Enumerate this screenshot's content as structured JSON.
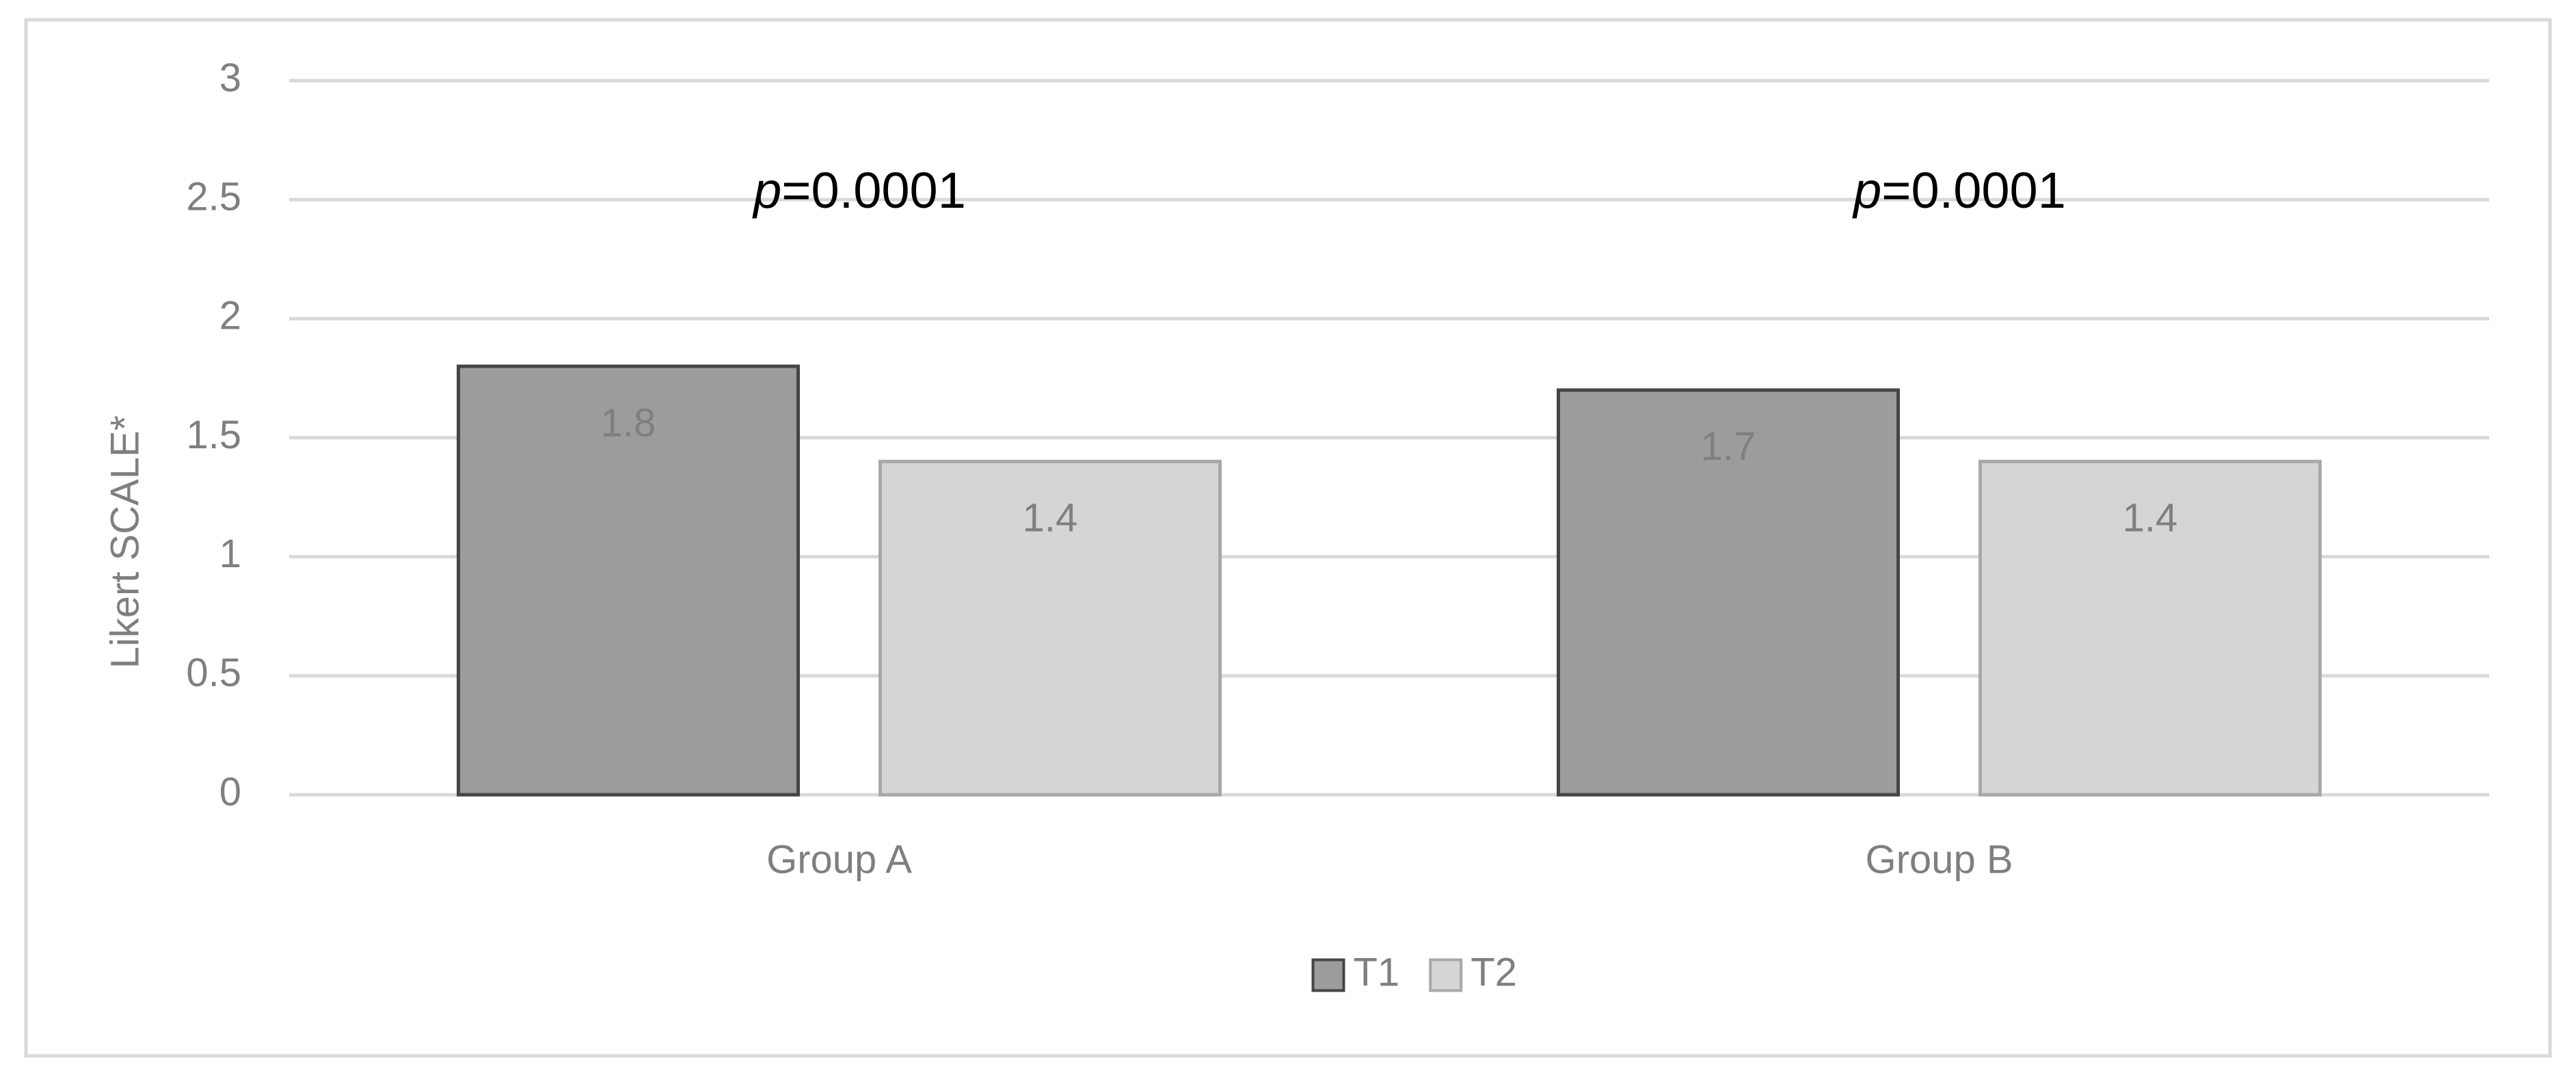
{
  "chart_data": {
    "type": "bar",
    "y_label": "Likert SCALE*",
    "categories": [
      "Group A",
      "Group B"
    ],
    "series": [
      {
        "name": "T1",
        "color": "#9c9c9c",
        "edgecolor": "#454545",
        "values": [
          1.8,
          1.7
        ]
      },
      {
        "name": "T2",
        "color": "#d5d5d5",
        "edgecolor": "#a8a8a8",
        "values": [
          1.4,
          1.4
        ]
      }
    ],
    "annotations": [
      {
        "italic": "p",
        "text": "=0.0001"
      },
      {
        "italic": "p",
        "text": "=0.0001"
      }
    ],
    "ylim": [
      0,
      3
    ],
    "yticks": [
      0,
      0.5,
      1,
      1.5,
      2,
      2.5,
      3
    ],
    "grid": true,
    "legend": "bottom"
  }
}
